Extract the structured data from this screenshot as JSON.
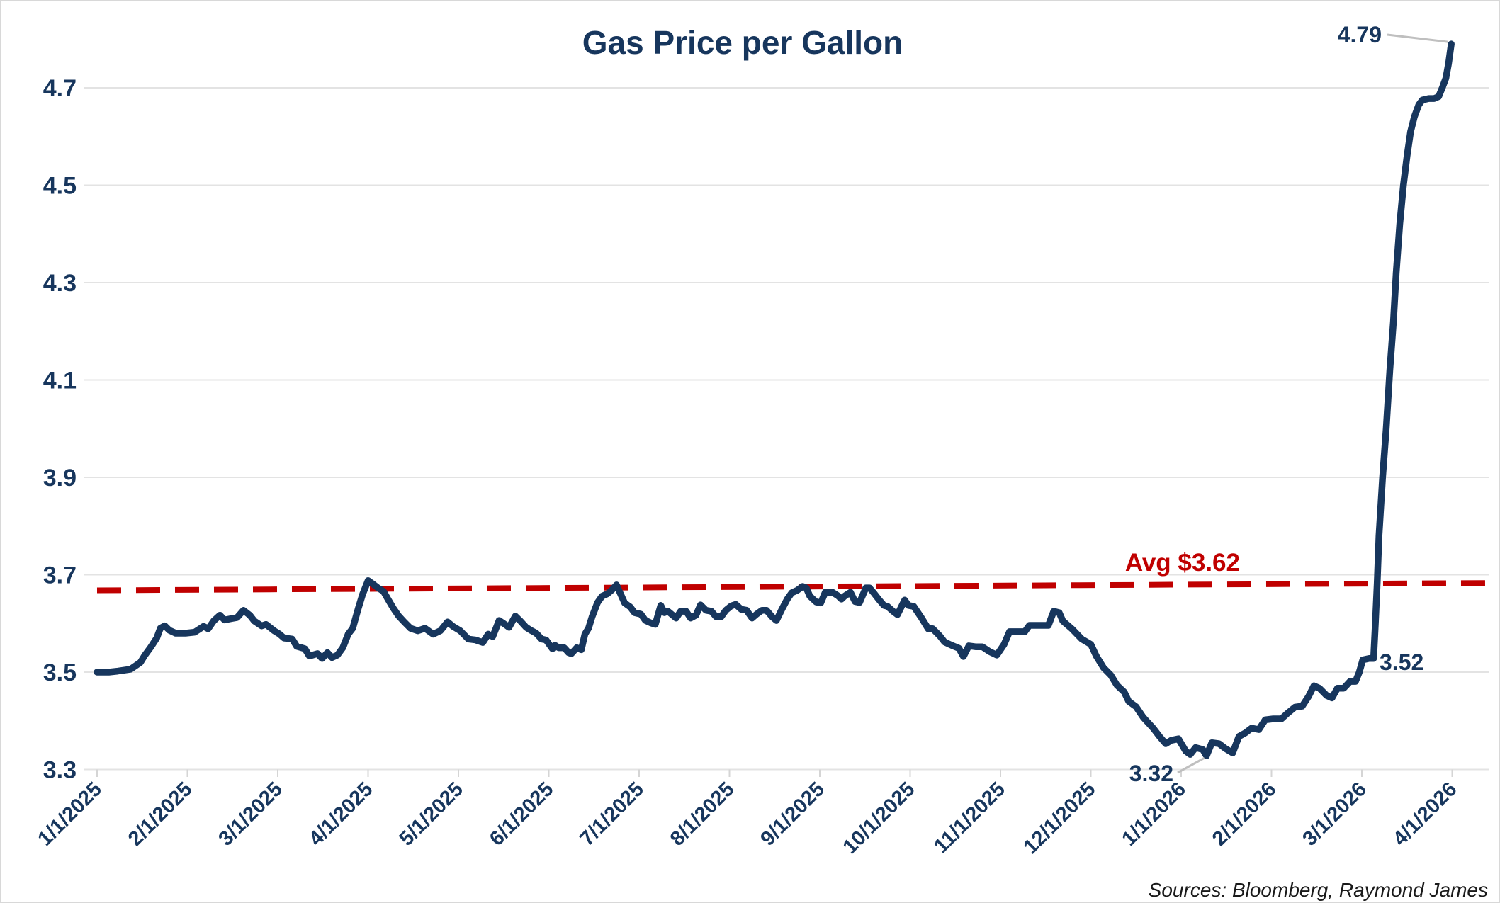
{
  "title": "Gas Price per Gallon",
  "source_note": "Sources: Bloomberg, Raymond James",
  "colors": {
    "line": "#17365D",
    "text": "#17365D",
    "average": "#C00000",
    "grid": "#E3E3E3",
    "axis": "#D5D5D5",
    "leader": "#BFBFBF",
    "source_text": "#1A1A1A",
    "border": "#D8D8D8",
    "background": "#FFFFFF"
  },
  "chart_data": {
    "type": "line",
    "title": "Gas Price per Gallon",
    "x_unit": "months since 1/1/2025",
    "x_tick_labels": [
      "1/1/2025",
      "2/1/2025",
      "3/1/2025",
      "4/1/2025",
      "5/1/2025",
      "6/1/2025",
      "7/1/2025",
      "8/1/2025",
      "9/1/2025",
      "10/1/2025",
      "11/1/2025",
      "12/1/2025",
      "1/1/2026",
      "2/1/2026",
      "3/1/2026",
      "4/1/2026"
    ],
    "y_ticks": [
      3.3,
      3.5,
      3.7,
      3.9,
      4.1,
      4.3,
      4.5,
      4.7
    ],
    "ylim": [
      3.3,
      4.85
    ],
    "grid": "horizontal-only",
    "legend": "none",
    "average_line": {
      "label": "Avg $3.62",
      "value": 3.62,
      "color": "#C00000",
      "style": "dashed",
      "drawn_span_values": [
        3.668,
        3.683
      ]
    },
    "annotations": [
      {
        "id": "final",
        "text": "4.79",
        "value": 4.79
      },
      {
        "id": "mar-2026",
        "text": "3.52",
        "value": 3.52
      },
      {
        "id": "min",
        "text": "3.32",
        "value": 3.32
      }
    ],
    "series": [
      {
        "name": "Gas price per gallon (USD)",
        "color": "#17365D",
        "points": [
          [
            0,
            3.5
          ],
          [
            0.13,
            3.5
          ],
          [
            0.23,
            3.502
          ],
          [
            0.37,
            3.506
          ],
          [
            0.48,
            3.52
          ],
          [
            0.53,
            3.535
          ],
          [
            0.59,
            3.55
          ],
          [
            0.66,
            3.57
          ],
          [
            0.7,
            3.59
          ],
          [
            0.75,
            3.595
          ],
          [
            0.8,
            3.586
          ],
          [
            0.87,
            3.58
          ],
          [
            0.98,
            3.58
          ],
          [
            1.08,
            3.582
          ],
          [
            1.18,
            3.594
          ],
          [
            1.23,
            3.589
          ],
          [
            1.29,
            3.605
          ],
          [
            1.36,
            3.617
          ],
          [
            1.41,
            3.607
          ],
          [
            1.49,
            3.61
          ],
          [
            1.55,
            3.612
          ],
          [
            1.62,
            3.627
          ],
          [
            1.69,
            3.617
          ],
          [
            1.74,
            3.605
          ],
          [
            1.82,
            3.595
          ],
          [
            1.87,
            3.598
          ],
          [
            1.96,
            3.585
          ],
          [
            2.02,
            3.578
          ],
          [
            2.07,
            3.57
          ],
          [
            2.16,
            3.568
          ],
          [
            2.21,
            3.553
          ],
          [
            2.3,
            3.548
          ],
          [
            2.35,
            3.533
          ],
          [
            2.44,
            3.538
          ],
          [
            2.49,
            3.528
          ],
          [
            2.55,
            3.54
          ],
          [
            2.6,
            3.53
          ],
          [
            2.66,
            3.535
          ],
          [
            2.72,
            3.55
          ],
          [
            2.78,
            3.578
          ],
          [
            2.83,
            3.59
          ],
          [
            2.89,
            3.63
          ],
          [
            2.94,
            3.66
          ],
          [
            3,
            3.688
          ],
          [
            3.06,
            3.68
          ],
          [
            3.11,
            3.673
          ],
          [
            3.17,
            3.666
          ],
          [
            3.22,
            3.65
          ],
          [
            3.28,
            3.631
          ],
          [
            3.34,
            3.615
          ],
          [
            3.4,
            3.603
          ],
          [
            3.47,
            3.59
          ],
          [
            3.55,
            3.585
          ],
          [
            3.63,
            3.59
          ],
          [
            3.72,
            3.578
          ],
          [
            3.8,
            3.585
          ],
          [
            3.88,
            3.603
          ],
          [
            3.94,
            3.594
          ],
          [
            4.02,
            3.585
          ],
          [
            4.11,
            3.568
          ],
          [
            4.19,
            3.566
          ],
          [
            4.27,
            3.561
          ],
          [
            4.33,
            3.578
          ],
          [
            4.38,
            3.573
          ],
          [
            4.45,
            3.606
          ],
          [
            4.5,
            3.6
          ],
          [
            4.56,
            3.592
          ],
          [
            4.63,
            3.615
          ],
          [
            4.68,
            3.606
          ],
          [
            4.75,
            3.592
          ],
          [
            4.81,
            3.585
          ],
          [
            4.86,
            3.58
          ],
          [
            4.92,
            3.568
          ],
          [
            4.97,
            3.566
          ],
          [
            5.04,
            3.548
          ],
          [
            5.07,
            3.555
          ],
          [
            5.11,
            3.55
          ],
          [
            5.17,
            3.55
          ],
          [
            5.22,
            3.54
          ],
          [
            5.25,
            3.538
          ],
          [
            5.31,
            3.55
          ],
          [
            5.36,
            3.546
          ],
          [
            5.4,
            3.578
          ],
          [
            5.44,
            3.59
          ],
          [
            5.48,
            3.614
          ],
          [
            5.54,
            3.643
          ],
          [
            5.59,
            3.656
          ],
          [
            5.65,
            3.661
          ],
          [
            5.7,
            3.669
          ],
          [
            5.75,
            3.679
          ],
          [
            5.84,
            3.642
          ],
          [
            5.9,
            3.634
          ],
          [
            5.95,
            3.622
          ],
          [
            6.02,
            3.619
          ],
          [
            6.07,
            3.606
          ],
          [
            6.13,
            3.601
          ],
          [
            6.18,
            3.598
          ],
          [
            6.24,
            3.637
          ],
          [
            6.28,
            3.622
          ],
          [
            6.32,
            3.625
          ],
          [
            6.41,
            3.611
          ],
          [
            6.46,
            3.625
          ],
          [
            6.52,
            3.625
          ],
          [
            6.57,
            3.611
          ],
          [
            6.63,
            3.617
          ],
          [
            6.68,
            3.638
          ],
          [
            6.74,
            3.627
          ],
          [
            6.8,
            3.625
          ],
          [
            6.85,
            3.614
          ],
          [
            6.91,
            3.614
          ],
          [
            6.96,
            3.627
          ],
          [
            7.02,
            3.636
          ],
          [
            7.07,
            3.639
          ],
          [
            7.13,
            3.629
          ],
          [
            7.19,
            3.627
          ],
          [
            7.25,
            3.611
          ],
          [
            7.3,
            3.619
          ],
          [
            7.36,
            3.627
          ],
          [
            7.41,
            3.627
          ],
          [
            7.47,
            3.614
          ],
          [
            7.52,
            3.606
          ],
          [
            7.58,
            3.629
          ],
          [
            7.64,
            3.65
          ],
          [
            7.69,
            3.663
          ],
          [
            7.75,
            3.668
          ],
          [
            7.81,
            3.676
          ],
          [
            7.85,
            3.673
          ],
          [
            7.89,
            3.656
          ],
          [
            7.96,
            3.644
          ],
          [
            8.01,
            3.642
          ],
          [
            8.06,
            3.664
          ],
          [
            8.14,
            3.664
          ],
          [
            8.2,
            3.657
          ],
          [
            8.24,
            3.65
          ],
          [
            8.28,
            3.657
          ],
          [
            8.34,
            3.664
          ],
          [
            8.39,
            3.645
          ],
          [
            8.44,
            3.643
          ],
          [
            8.51,
            3.673
          ],
          [
            8.55,
            3.673
          ],
          [
            8.6,
            3.662
          ],
          [
            8.65,
            3.65
          ],
          [
            8.71,
            3.637
          ],
          [
            8.75,
            3.635
          ],
          [
            8.81,
            3.625
          ],
          [
            8.86,
            3.618
          ],
          [
            8.94,
            3.648
          ],
          [
            8.98,
            3.637
          ],
          [
            9.04,
            3.635
          ],
          [
            9.12,
            3.613
          ],
          [
            9.2,
            3.589
          ],
          [
            9.25,
            3.589
          ],
          [
            9.33,
            3.574
          ],
          [
            9.38,
            3.562
          ],
          [
            9.46,
            3.555
          ],
          [
            9.54,
            3.549
          ],
          [
            9.59,
            3.532
          ],
          [
            9.65,
            3.554
          ],
          [
            9.73,
            3.552
          ],
          [
            9.8,
            3.552
          ],
          [
            9.88,
            3.542
          ],
          [
            9.96,
            3.535
          ],
          [
            10.04,
            3.557
          ],
          [
            10.1,
            3.583
          ],
          [
            10.16,
            3.583
          ],
          [
            10.27,
            3.583
          ],
          [
            10.32,
            3.596
          ],
          [
            10.43,
            3.596
          ],
          [
            10.53,
            3.596
          ],
          [
            10.59,
            3.625
          ],
          [
            10.65,
            3.622
          ],
          [
            10.69,
            3.605
          ],
          [
            10.79,
            3.589
          ],
          [
            10.9,
            3.568
          ],
          [
            11,
            3.557
          ],
          [
            11.06,
            3.533
          ],
          [
            11.14,
            3.509
          ],
          [
            11.22,
            3.494
          ],
          [
            11.29,
            3.473
          ],
          [
            11.37,
            3.459
          ],
          [
            11.42,
            3.44
          ],
          [
            11.5,
            3.429
          ],
          [
            11.58,
            3.407
          ],
          [
            11.69,
            3.385
          ],
          [
            11.76,
            3.368
          ],
          [
            11.83,
            3.353
          ],
          [
            11.89,
            3.36
          ],
          [
            11.97,
            3.363
          ],
          [
            12.05,
            3.338
          ],
          [
            12.1,
            3.331
          ],
          [
            12.16,
            3.345
          ],
          [
            12.24,
            3.341
          ],
          [
            12.28,
            3.328
          ],
          [
            12.34,
            3.355
          ],
          [
            12.42,
            3.353
          ],
          [
            12.49,
            3.343
          ],
          [
            12.57,
            3.334
          ],
          [
            12.64,
            3.368
          ],
          [
            12.71,
            3.375
          ],
          [
            12.78,
            3.385
          ],
          [
            12.86,
            3.382
          ],
          [
            12.93,
            3.402
          ],
          [
            13.02,
            3.404
          ],
          [
            13.11,
            3.404
          ],
          [
            13.18,
            3.416
          ],
          [
            13.26,
            3.428
          ],
          [
            13.34,
            3.43
          ],
          [
            13.41,
            3.45
          ],
          [
            13.47,
            3.472
          ],
          [
            13.53,
            3.467
          ],
          [
            13.61,
            3.452
          ],
          [
            13.67,
            3.447
          ],
          [
            13.73,
            3.467
          ],
          [
            13.8,
            3.467
          ],
          [
            13.87,
            3.481
          ],
          [
            13.93,
            3.481
          ],
          [
            13.97,
            3.499
          ],
          [
            14.01,
            3.525
          ],
          [
            14.08,
            3.528
          ],
          [
            14.13,
            3.528
          ],
          [
            14.15,
            3.6
          ],
          [
            14.17,
            3.683
          ],
          [
            14.19,
            3.78
          ],
          [
            14.23,
            3.9
          ],
          [
            14.27,
            4.0
          ],
          [
            14.31,
            4.12
          ],
          [
            14.35,
            4.22
          ],
          [
            14.38,
            4.32
          ],
          [
            14.42,
            4.42
          ],
          [
            14.46,
            4.5
          ],
          [
            14.5,
            4.56
          ],
          [
            14.54,
            4.61
          ],
          [
            14.58,
            4.64
          ],
          [
            14.63,
            4.665
          ],
          [
            14.67,
            4.675
          ],
          [
            14.74,
            4.678
          ],
          [
            14.8,
            4.678
          ],
          [
            14.85,
            4.682
          ],
          [
            14.89,
            4.7
          ],
          [
            14.93,
            4.72
          ],
          [
            14.96,
            4.75
          ],
          [
            14.99,
            4.79
          ]
        ]
      }
    ]
  }
}
